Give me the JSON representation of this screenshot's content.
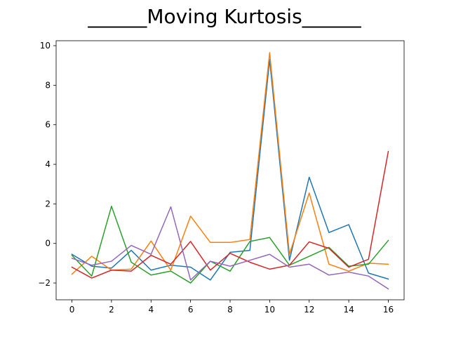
{
  "chart_data": {
    "type": "line",
    "title": "______Moving Kurtosis______",
    "xlabel": "",
    "ylabel": "",
    "x": [
      0,
      1,
      2,
      3,
      4,
      5,
      6,
      7,
      8,
      9,
      10,
      11,
      12,
      13,
      14,
      15,
      16
    ],
    "xlim": [
      -0.8,
      16.8
    ],
    "ylim": [
      -2.85,
      10.25
    ],
    "xticks": [
      0,
      2,
      4,
      6,
      8,
      10,
      12,
      14,
      16
    ],
    "yticks": [
      -2,
      0,
      2,
      4,
      6,
      8,
      10
    ],
    "grid": false,
    "series": [
      {
        "color": "#1f77b4",
        "values": [
          -0.55,
          -1.15,
          -1.25,
          -0.35,
          -1.35,
          -1.1,
          -1.2,
          -1.85,
          -0.45,
          -0.35,
          9.3,
          -0.85,
          3.35,
          0.55,
          0.95,
          -1.5,
          -1.8
        ]
      },
      {
        "color": "#ff7f0e",
        "values": [
          -1.55,
          -0.65,
          -1.35,
          -1.3,
          0.12,
          -1.35,
          1.38,
          0.05,
          0.05,
          0.2,
          9.65,
          -0.55,
          2.55,
          -1.05,
          -1.4,
          -1.0,
          -1.05
        ]
      },
      {
        "color": "#2ca02c",
        "values": [
          -0.6,
          -1.65,
          1.88,
          -0.95,
          -1.6,
          -1.4,
          -2.0,
          -0.9,
          -1.4,
          0.1,
          0.3,
          -1.1,
          -0.65,
          -0.2,
          -1.15,
          -1.05,
          0.15
        ]
      },
      {
        "color": "#d62728",
        "values": [
          -1.2,
          -1.75,
          -1.35,
          -1.4,
          -0.6,
          -1.05,
          0.1,
          -1.35,
          -0.5,
          -0.95,
          -1.3,
          -1.1,
          0.08,
          -0.25,
          -1.2,
          -0.8,
          4.65
        ]
      },
      {
        "color": "#9467bd",
        "values": [
          -0.75,
          -1.1,
          -0.9,
          -0.1,
          -0.55,
          1.85,
          -1.85,
          -0.9,
          -1.15,
          -0.85,
          -0.55,
          -1.2,
          -1.05,
          -1.6,
          -1.45,
          -1.65,
          -2.3
        ]
      }
    ]
  }
}
